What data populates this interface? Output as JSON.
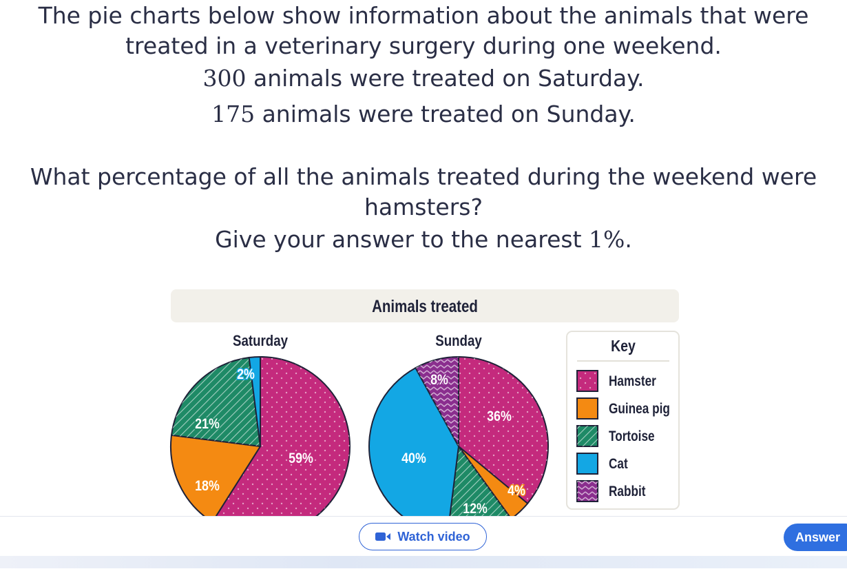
{
  "question": {
    "line1": "The pie charts below show information about the animals that were",
    "line2": "treated in a veterinary surgery during one weekend.",
    "line3_num": "300",
    "line3_text": " animals were treated on Saturday.",
    "line4_num": "175",
    "line4_text": " animals were treated on Sunday.",
    "line5": "What percentage of all the animals treated during the weekend were",
    "line6": "hamsters?",
    "line7_text": "Give your answer to the nearest ",
    "line7_num": "1%",
    "line7_end": "."
  },
  "chart_data": {
    "type": "pie",
    "title": "Animals treated",
    "charts": [
      {
        "name": "Saturday",
        "slices": [
          {
            "label": "Hamster",
            "value": 59,
            "text": "59%"
          },
          {
            "label": "Guinea pig",
            "value": 18,
            "text": "18%"
          },
          {
            "label": "Tortoise",
            "value": 21,
            "text": "21%"
          },
          {
            "label": "Cat",
            "value": 2,
            "text": "2%"
          }
        ]
      },
      {
        "name": "Sunday",
        "slices": [
          {
            "label": "Hamster",
            "value": 36,
            "text": "36%"
          },
          {
            "label": "Guinea pig",
            "value": 4,
            "text": "4%"
          },
          {
            "label": "Tortoise",
            "value": 12,
            "text": "12%"
          },
          {
            "label": "Cat",
            "value": 40,
            "text": "40%"
          },
          {
            "label": "Rabbit",
            "value": 8,
            "text": "8%"
          }
        ]
      }
    ],
    "legend_title": "Key",
    "legend": [
      "Hamster",
      "Guinea pig",
      "Tortoise",
      "Cat",
      "Rabbit"
    ],
    "legend_placement": "right",
    "colors": {
      "Hamster": "#c42a7d",
      "Guinea pig": "#f48a12",
      "Tortoise": "#1e8a66",
      "Cat": "#13a7e4",
      "Rabbit": "#8a2e8e"
    }
  },
  "buttons": {
    "watch_video": "Watch video",
    "answer": "Answer"
  }
}
